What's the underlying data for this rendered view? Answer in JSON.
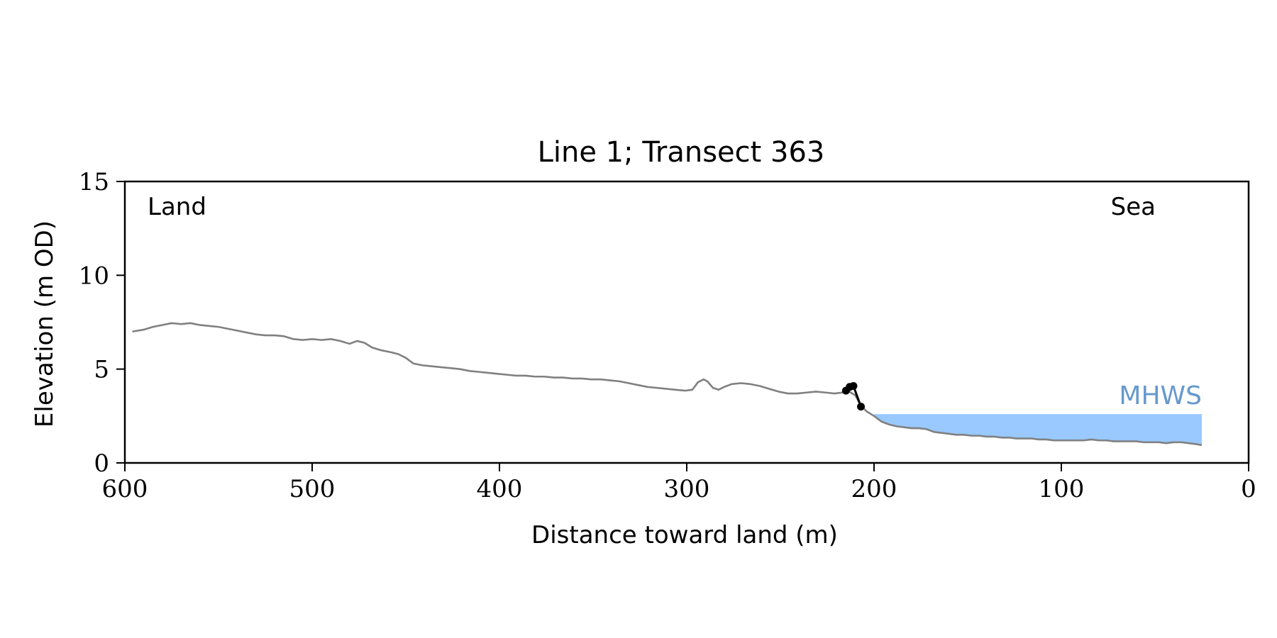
{
  "chart_data": {
    "type": "line",
    "title": "Line 1; Transect 363",
    "xlabel": "Distance toward land (m)",
    "ylabel": "Elevation (m OD)",
    "xlim": [
      600,
      0
    ],
    "ylim": [
      0,
      15
    ],
    "x_ticks": [
      "600",
      "500",
      "400",
      "300",
      "200",
      "100",
      "0"
    ],
    "y_ticks": [
      "0",
      "5",
      "10",
      "15"
    ],
    "grid": false,
    "annotations": {
      "left": "Land",
      "right": "Sea",
      "mhws_label": "MHWS"
    },
    "colors": {
      "profile": "#808080",
      "mhws_fill": "#99c9ff",
      "mhws_label": "#6699cc",
      "cliff": "#000000"
    },
    "mhws": {
      "elevation": 2.6,
      "x_start": 200,
      "x_end": 25
    },
    "series": [
      {
        "role": "profile",
        "points": [
          [
            596,
            7.0
          ],
          [
            590,
            7.1
          ],
          [
            585,
            7.25
          ],
          [
            580,
            7.35
          ],
          [
            575,
            7.45
          ],
          [
            570,
            7.4
          ],
          [
            565,
            7.45
          ],
          [
            560,
            7.35
          ],
          [
            555,
            7.3
          ],
          [
            550,
            7.25
          ],
          [
            545,
            7.15
          ],
          [
            540,
            7.05
          ],
          [
            535,
            6.95
          ],
          [
            530,
            6.85
          ],
          [
            525,
            6.8
          ],
          [
            520,
            6.8
          ],
          [
            515,
            6.75
          ],
          [
            510,
            6.6
          ],
          [
            505,
            6.55
          ],
          [
            500,
            6.6
          ],
          [
            495,
            6.55
          ],
          [
            490,
            6.6
          ],
          [
            485,
            6.5
          ],
          [
            480,
            6.35
          ],
          [
            476,
            6.5
          ],
          [
            472,
            6.4
          ],
          [
            468,
            6.15
          ],
          [
            463,
            6.0
          ],
          [
            458,
            5.9
          ],
          [
            454,
            5.8
          ],
          [
            450,
            5.6
          ],
          [
            446,
            5.3
          ],
          [
            441,
            5.2
          ],
          [
            436,
            5.15
          ],
          [
            431,
            5.1
          ],
          [
            426,
            5.05
          ],
          [
            421,
            5.0
          ],
          [
            416,
            4.9
          ],
          [
            411,
            4.85
          ],
          [
            406,
            4.8
          ],
          [
            401,
            4.75
          ],
          [
            396,
            4.7
          ],
          [
            391,
            4.65
          ],
          [
            386,
            4.65
          ],
          [
            381,
            4.6
          ],
          [
            376,
            4.6
          ],
          [
            371,
            4.55
          ],
          [
            366,
            4.55
          ],
          [
            361,
            4.5
          ],
          [
            356,
            4.5
          ],
          [
            351,
            4.45
          ],
          [
            346,
            4.45
          ],
          [
            341,
            4.4
          ],
          [
            336,
            4.35
          ],
          [
            331,
            4.25
          ],
          [
            326,
            4.15
          ],
          [
            321,
            4.05
          ],
          [
            316,
            4.0
          ],
          [
            311,
            3.95
          ],
          [
            306,
            3.9
          ],
          [
            301,
            3.85
          ],
          [
            297,
            3.9
          ],
          [
            294,
            4.3
          ],
          [
            291,
            4.45
          ],
          [
            289,
            4.35
          ],
          [
            286,
            4.0
          ],
          [
            283,
            3.9
          ],
          [
            280,
            4.05
          ],
          [
            276,
            4.2
          ],
          [
            271,
            4.25
          ],
          [
            266,
            4.2
          ],
          [
            261,
            4.1
          ],
          [
            256,
            3.95
          ],
          [
            251,
            3.8
          ],
          [
            246,
            3.7
          ],
          [
            241,
            3.7
          ],
          [
            236,
            3.75
          ],
          [
            231,
            3.8
          ],
          [
            226,
            3.75
          ],
          [
            221,
            3.7
          ],
          [
            217,
            3.75
          ],
          [
            214,
            3.85
          ],
          [
            210,
            3.6
          ],
          [
            207,
            3.05
          ],
          [
            204,
            2.75
          ],
          [
            200,
            2.5
          ],
          [
            196,
            2.2
          ],
          [
            192,
            2.05
          ],
          [
            188,
            1.95
          ],
          [
            184,
            1.9
          ],
          [
            180,
            1.85
          ],
          [
            176,
            1.85
          ],
          [
            172,
            1.8
          ],
          [
            168,
            1.65
          ],
          [
            164,
            1.6
          ],
          [
            160,
            1.55
          ],
          [
            156,
            1.5
          ],
          [
            152,
            1.5
          ],
          [
            148,
            1.45
          ],
          [
            144,
            1.45
          ],
          [
            140,
            1.4
          ],
          [
            136,
            1.4
          ],
          [
            132,
            1.35
          ],
          [
            128,
            1.35
          ],
          [
            124,
            1.3
          ],
          [
            120,
            1.3
          ],
          [
            116,
            1.3
          ],
          [
            112,
            1.25
          ],
          [
            108,
            1.25
          ],
          [
            104,
            1.2
          ],
          [
            100,
            1.2
          ],
          [
            96,
            1.2
          ],
          [
            92,
            1.2
          ],
          [
            88,
            1.2
          ],
          [
            84,
            1.25
          ],
          [
            80,
            1.2
          ],
          [
            76,
            1.2
          ],
          [
            72,
            1.15
          ],
          [
            68,
            1.15
          ],
          [
            64,
            1.15
          ],
          [
            60,
            1.15
          ],
          [
            56,
            1.1
          ],
          [
            52,
            1.1
          ],
          [
            48,
            1.1
          ],
          [
            44,
            1.05
          ],
          [
            40,
            1.1
          ],
          [
            36,
            1.1
          ],
          [
            32,
            1.05
          ],
          [
            28,
            1.0
          ],
          [
            25,
            0.95
          ]
        ]
      },
      {
        "role": "cliff",
        "points": [
          [
            215,
            3.85
          ],
          [
            213,
            4.05
          ],
          [
            211,
            4.1
          ],
          [
            207,
            3.0
          ]
        ]
      }
    ]
  }
}
